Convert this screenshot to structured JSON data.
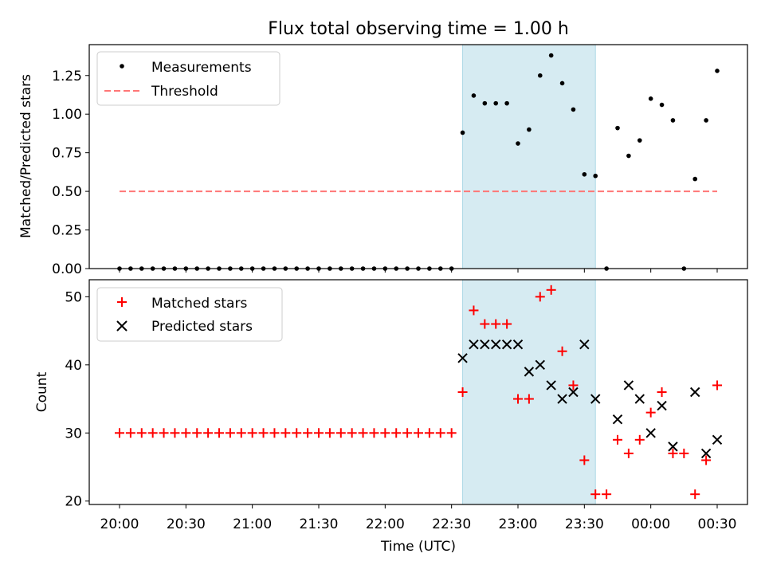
{
  "chart_data": [
    {
      "type": "scatter",
      "title": "Flux total observing time = 1.00 h",
      "ylabel": "Matched/Predicted stars",
      "xlabel": "",
      "ylim": [
        0,
        1.45
      ],
      "yticks": [
        "0.00",
        "0.25",
        "0.50",
        "0.75",
        "1.00",
        "1.25"
      ],
      "shaded_interval": [
        "22:35",
        "23:35"
      ],
      "legend_position": "top-left",
      "grid": false,
      "series": [
        {
          "name": "Measurements",
          "marker": "dot",
          "color": "#000000",
          "points": [
            [
              "20:00",
              0
            ],
            [
              "20:05",
              0
            ],
            [
              "20:10",
              0
            ],
            [
              "20:15",
              0
            ],
            [
              "20:20",
              0
            ],
            [
              "20:25",
              0
            ],
            [
              "20:30",
              0
            ],
            [
              "20:35",
              0
            ],
            [
              "20:40",
              0
            ],
            [
              "20:45",
              0
            ],
            [
              "20:50",
              0
            ],
            [
              "20:55",
              0
            ],
            [
              "21:00",
              0
            ],
            [
              "21:05",
              0
            ],
            [
              "21:10",
              0
            ],
            [
              "21:15",
              0
            ],
            [
              "21:20",
              0
            ],
            [
              "21:25",
              0
            ],
            [
              "21:30",
              0
            ],
            [
              "21:35",
              0
            ],
            [
              "21:40",
              0
            ],
            [
              "21:45",
              0
            ],
            [
              "21:50",
              0
            ],
            [
              "21:55",
              0
            ],
            [
              "22:00",
              0
            ],
            [
              "22:05",
              0
            ],
            [
              "22:10",
              0
            ],
            [
              "22:15",
              0
            ],
            [
              "22:20",
              0
            ],
            [
              "22:25",
              0
            ],
            [
              "22:30",
              0
            ],
            [
              "22:35",
              0.88
            ],
            [
              "22:40",
              1.12
            ],
            [
              "22:45",
              1.07
            ],
            [
              "22:50",
              1.07
            ],
            [
              "22:55",
              1.07
            ],
            [
              "23:00",
              0.81
            ],
            [
              "23:05",
              0.9
            ],
            [
              "23:10",
              1.25
            ],
            [
              "23:15",
              1.38
            ],
            [
              "23:20",
              1.2
            ],
            [
              "23:25",
              1.03
            ],
            [
              "23:30",
              0.61
            ],
            [
              "23:35",
              0.6
            ],
            [
              "23:40",
              0
            ],
            [
              "23:45",
              0.91
            ],
            [
              "23:50",
              0.73
            ],
            [
              "23:55",
              0.83
            ],
            [
              "00:00",
              1.1
            ],
            [
              "00:05",
              1.06
            ],
            [
              "00:10",
              0.96
            ],
            [
              "00:15",
              0
            ],
            [
              "00:20",
              0.58
            ],
            [
              "00:25",
              0.96
            ],
            [
              "00:30",
              1.28
            ]
          ]
        },
        {
          "name": "Threshold",
          "marker": "dashed-line",
          "color": "#ff7777",
          "points": [
            [
              "20:00",
              0.5
            ],
            [
              "00:30",
              0.5
            ]
          ]
        }
      ]
    },
    {
      "type": "scatter",
      "title": "",
      "ylabel": "Count",
      "xlabel": "Time (UTC)",
      "ylim": [
        19.5,
        52.5
      ],
      "yticks": [
        "20",
        "30",
        "40",
        "50"
      ],
      "xticks": [
        "20:00",
        "20:30",
        "21:00",
        "21:30",
        "22:00",
        "22:30",
        "23:00",
        "23:30",
        "00:00",
        "00:30"
      ],
      "shaded_interval": [
        "22:35",
        "23:35"
      ],
      "legend_position": "top-left",
      "grid": false,
      "series": [
        {
          "name": "Matched stars",
          "marker": "plus",
          "color": "#ff0000",
          "points": [
            [
              "20:00",
              30
            ],
            [
              "20:05",
              30
            ],
            [
              "20:10",
              30
            ],
            [
              "20:15",
              30
            ],
            [
              "20:20",
              30
            ],
            [
              "20:25",
              30
            ],
            [
              "20:30",
              30
            ],
            [
              "20:35",
              30
            ],
            [
              "20:40",
              30
            ],
            [
              "20:45",
              30
            ],
            [
              "20:50",
              30
            ],
            [
              "20:55",
              30
            ],
            [
              "21:00",
              30
            ],
            [
              "21:05",
              30
            ],
            [
              "21:10",
              30
            ],
            [
              "21:15",
              30
            ],
            [
              "21:20",
              30
            ],
            [
              "21:25",
              30
            ],
            [
              "21:30",
              30
            ],
            [
              "21:35",
              30
            ],
            [
              "21:40",
              30
            ],
            [
              "21:45",
              30
            ],
            [
              "21:50",
              30
            ],
            [
              "21:55",
              30
            ],
            [
              "22:00",
              30
            ],
            [
              "22:05",
              30
            ],
            [
              "22:10",
              30
            ],
            [
              "22:15",
              30
            ],
            [
              "22:20",
              30
            ],
            [
              "22:25",
              30
            ],
            [
              "22:30",
              30
            ],
            [
              "22:35",
              36
            ],
            [
              "22:40",
              48
            ],
            [
              "22:45",
              46
            ],
            [
              "22:50",
              46
            ],
            [
              "22:55",
              46
            ],
            [
              "23:00",
              35
            ],
            [
              "23:05",
              35
            ],
            [
              "23:10",
              50
            ],
            [
              "23:15",
              51
            ],
            [
              "23:20",
              42
            ],
            [
              "23:25",
              37
            ],
            [
              "23:30",
              26
            ],
            [
              "23:35",
              21
            ],
            [
              "23:40",
              21
            ],
            [
              "23:45",
              29
            ],
            [
              "23:50",
              27
            ],
            [
              "23:55",
              29
            ],
            [
              "00:00",
              33
            ],
            [
              "00:05",
              36
            ],
            [
              "00:10",
              27
            ],
            [
              "00:15",
              27
            ],
            [
              "00:20",
              21
            ],
            [
              "00:25",
              26
            ],
            [
              "00:30",
              37
            ]
          ]
        },
        {
          "name": "Predicted stars",
          "marker": "x",
          "color": "#000000",
          "points": [
            [
              "22:35",
              41
            ],
            [
              "22:40",
              43
            ],
            [
              "22:45",
              43
            ],
            [
              "22:50",
              43
            ],
            [
              "22:55",
              43
            ],
            [
              "23:00",
              43
            ],
            [
              "23:05",
              39
            ],
            [
              "23:10",
              40
            ],
            [
              "23:15",
              37
            ],
            [
              "23:20",
              35
            ],
            [
              "23:25",
              36
            ],
            [
              "23:30",
              43
            ],
            [
              "23:35",
              35
            ],
            [
              "23:45",
              32
            ],
            [
              "23:50",
              37
            ],
            [
              "23:55",
              35
            ],
            [
              "00:00",
              30
            ],
            [
              "00:05",
              34
            ],
            [
              "00:10",
              28
            ],
            [
              "00:20",
              36
            ],
            [
              "00:25",
              27
            ],
            [
              "00:30",
              29
            ]
          ]
        }
      ]
    }
  ]
}
